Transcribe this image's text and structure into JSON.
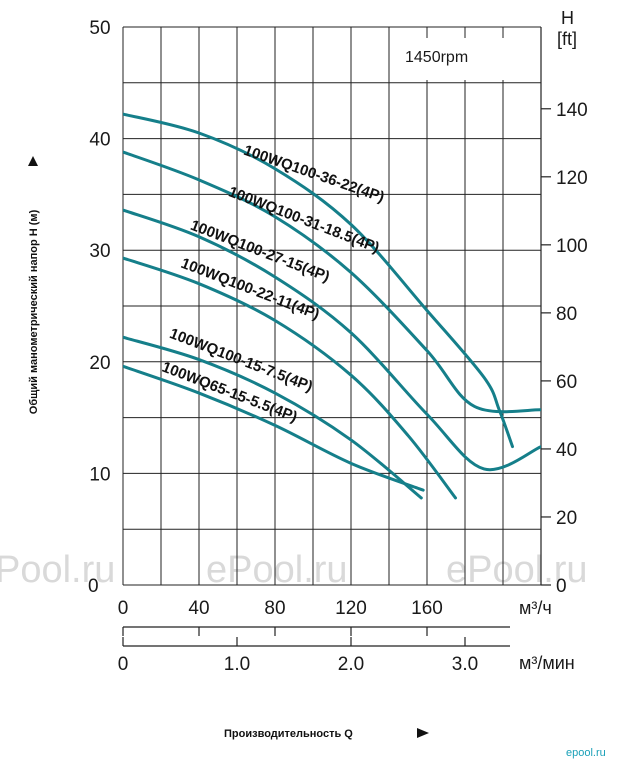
{
  "chart_data": {
    "type": "line",
    "speed_label": "1450rpm",
    "y_left": {
      "label": "Общий манометрический напор H (м)",
      "ticks": [
        "10",
        "20",
        "30",
        "40",
        "50"
      ],
      "ylim": [
        0,
        50
      ]
    },
    "y_right": {
      "label_top": "H",
      "label_unit": "[ft]",
      "ticks": [
        "0",
        "20",
        "40",
        "60",
        "80",
        "100",
        "120",
        "140"
      ]
    },
    "x_m3h": {
      "unit": "м³/ч",
      "ticks": [
        "0",
        "40",
        "80",
        "120",
        "160"
      ],
      "xlim": [
        0,
        220
      ]
    },
    "x_m3min": {
      "unit": "м³/мин",
      "ticks": [
        "0",
        "1.0",
        "2.0",
        "3.0"
      ]
    },
    "xlabel": "Производительность Q",
    "left_zero": "0",
    "series": [
      {
        "name": "100WQ100-36-22(4P)",
        "color": "#157f8a",
        "points": [
          [
            0,
            42.2
          ],
          [
            40,
            40.5
          ],
          [
            80,
            37.3
          ],
          [
            120,
            32.3
          ],
          [
            160,
            24.6
          ],
          [
            190,
            18.6
          ],
          [
            198,
            15.7
          ],
          [
            205,
            12.4
          ]
        ]
      },
      {
        "name": "100WQ100-31-18.5(4P)",
        "color": "#157f8a",
        "points": [
          [
            0,
            38.8
          ],
          [
            40,
            36.3
          ],
          [
            80,
            33.0
          ],
          [
            120,
            28.0
          ],
          [
            160,
            21.0
          ],
          [
            185,
            16.0
          ],
          [
            220,
            15.7
          ]
        ]
      },
      {
        "name": "100WQ100-27-15(4P)",
        "color": "#157f8a",
        "points": [
          [
            0,
            33.6
          ],
          [
            40,
            31.2
          ],
          [
            80,
            27.6
          ],
          [
            120,
            22.6
          ],
          [
            160,
            15.3
          ],
          [
            190,
            10.4
          ],
          [
            220,
            12.4
          ]
        ]
      },
      {
        "name": "100WQ100-22-11(4P)",
        "color": "#157f8a",
        "points": [
          [
            0,
            29.3
          ],
          [
            40,
            27.0
          ],
          [
            80,
            23.7
          ],
          [
            120,
            18.8
          ],
          [
            150,
            13.4
          ],
          [
            175,
            7.8
          ]
        ]
      },
      {
        "name": "100WQ100-15-7.5(4P)",
        "color": "#157f8a",
        "points": [
          [
            0,
            22.2
          ],
          [
            40,
            20.2
          ],
          [
            80,
            17.2
          ],
          [
            120,
            13.0
          ],
          [
            157,
            7.8
          ]
        ]
      },
      {
        "name": "100WQ65-15-5.5(4P)",
        "color": "#157f8a",
        "points": [
          [
            0,
            19.6
          ],
          [
            40,
            17.2
          ],
          [
            80,
            14.3
          ],
          [
            120,
            10.9
          ],
          [
            158,
            8.5
          ]
        ]
      }
    ],
    "grid": true
  },
  "watermarks": [
    "Pool.ru",
    "ePool.ru",
    "ePool.ru"
  ],
  "logo": "epool.ru"
}
